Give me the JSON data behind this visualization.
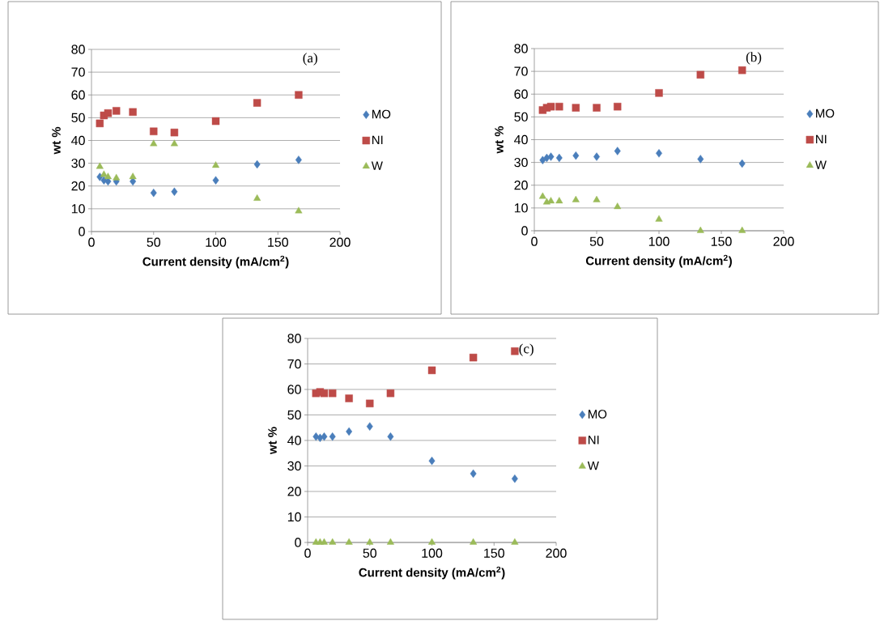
{
  "chart_data": [
    {
      "type": "scatter",
      "title": "(a)",
      "xlabel": "Current density (mA/cm$^{2}$)",
      "ylabel": "wt %",
      "x": [
        6.7,
        10,
        13.3,
        20,
        33.3,
        50,
        66.7,
        100,
        133.3,
        166.7
      ],
      "xlim": [
        0,
        200
      ],
      "xticks": [
        0,
        50,
        100,
        150,
        200
      ],
      "ylim": [
        0,
        80
      ],
      "yticks": [
        0,
        10,
        20,
        30,
        40,
        50,
        60,
        70,
        80
      ],
      "grid": "y",
      "legend": "right",
      "series": [
        {
          "name": "MO",
          "color": "#4a7ebb",
          "marker": "diamond",
          "values": [
            24,
            22.5,
            22,
            22,
            22,
            17,
            17.5,
            22.5,
            29.5,
            31.5
          ]
        },
        {
          "name": "NI",
          "color": "#be4b48",
          "marker": "square",
          "values": [
            47.5,
            51,
            52,
            53,
            52.5,
            44,
            43.5,
            48.5,
            56.5,
            60
          ]
        },
        {
          "name": "W",
          "color": "#9bbb59",
          "marker": "triangle",
          "values": [
            28.5,
            25,
            24,
            23.5,
            24,
            38.5,
            38.5,
            29,
            14.5,
            9
          ]
        }
      ]
    },
    {
      "type": "scatter",
      "title": "(b)",
      "xlabel": "Current density (mA/cm$^{2}$)",
      "ylabel": "wt %",
      "x": [
        6.7,
        10,
        13.3,
        20,
        33.3,
        50,
        66.7,
        100,
        133.3,
        166.7
      ],
      "xlim": [
        0,
        200
      ],
      "xticks": [
        0,
        50,
        100,
        150,
        200
      ],
      "ylim": [
        0,
        80
      ],
      "yticks": [
        0,
        10,
        20,
        30,
        40,
        50,
        60,
        70,
        80
      ],
      "grid": "y",
      "legend": "right",
      "series": [
        {
          "name": "MO",
          "color": "#4a7ebb",
          "marker": "diamond",
          "values": [
            31,
            32,
            32.5,
            32,
            33,
            32.5,
            35,
            34,
            31.5,
            29.5
          ]
        },
        {
          "name": "NI",
          "color": "#be4b48",
          "marker": "square",
          "values": [
            53,
            54,
            54.5,
            54.5,
            54,
            54,
            54.5,
            60.5,
            68.5,
            70.5
          ]
        },
        {
          "name": "W",
          "color": "#9bbb59",
          "marker": "triangle",
          "values": [
            15,
            12.5,
            13,
            13,
            13.5,
            13.5,
            10.5,
            5,
            0,
            0
          ]
        }
      ]
    },
    {
      "type": "scatter",
      "title": "(c)",
      "xlabel": "Current density (mA/cm$^{2}$)",
      "ylabel": "wt %",
      "x": [
        6.7,
        10,
        13.3,
        20,
        33.3,
        50,
        66.7,
        100,
        133.3,
        166.7
      ],
      "xlim": [
        0,
        200
      ],
      "xticks": [
        0,
        50,
        100,
        150,
        200
      ],
      "ylim": [
        0,
        80
      ],
      "yticks": [
        0,
        10,
        20,
        30,
        40,
        50,
        60,
        70,
        80
      ],
      "grid": "y",
      "legend": "right",
      "series": [
        {
          "name": "MO",
          "color": "#4a7ebb",
          "marker": "diamond",
          "values": [
            41.5,
            41,
            41.5,
            41.5,
            43.5,
            45.5,
            41.5,
            32,
            27,
            25
          ]
        },
        {
          "name": "NI",
          "color": "#be4b48",
          "marker": "square",
          "values": [
            58.5,
            59,
            58.5,
            58.5,
            56.5,
            54.5,
            58.5,
            67.5,
            72.5,
            75
          ]
        },
        {
          "name": "W",
          "color": "#9bbb59",
          "marker": "triangle",
          "values": [
            0,
            0,
            0,
            0,
            0,
            0,
            0,
            0,
            0,
            0
          ]
        }
      ]
    }
  ]
}
